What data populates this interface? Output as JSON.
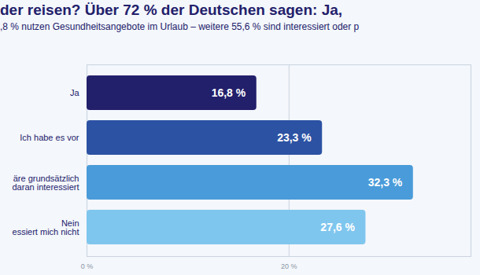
{
  "chart_data": {
    "type": "bar",
    "orientation": "horizontal",
    "title": "der reisen? Über 72 % der Deutschen sagen: Ja,",
    "subtitle": ",8 % nutzen Gesundheitsangebote im Urlaub – weitere 55,6 % sind interessiert oder p",
    "categories": [
      "Ja",
      "Ich habe es vor",
      "äre grundsätzlich\ndaran interessiert",
      "Nein\nessiert mich nicht"
    ],
    "values": [
      16.8,
      23.3,
      32.3,
      27.6
    ],
    "value_labels": [
      "16,8 %",
      "23,3 %",
      "32,3 %",
      "27,6 %"
    ],
    "colors": [
      "#221f6b",
      "#2c52a3",
      "#4a9bd9",
      "#7fc6ee"
    ],
    "xlim": [
      0,
      38
    ],
    "xticks": [
      {
        "value": 0,
        "label": "0 %"
      },
      {
        "value": 20,
        "label": "20 %"
      }
    ],
    "grid": true,
    "data_labels": true
  }
}
